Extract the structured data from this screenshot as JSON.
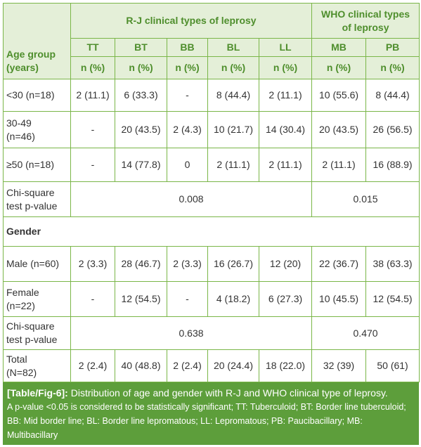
{
  "header": {
    "age_group": "Age group\n(years)",
    "rj": "R-J clinical types of leprosy",
    "who": "WHO clinical types\nof leprosy",
    "types": [
      "TT",
      "BT",
      "BB",
      "BL",
      "LL",
      "MB",
      "PB"
    ],
    "units": [
      "n (%)",
      "n (%)",
      "n (%)",
      "n (%)",
      "n (%)",
      "n (%)",
      "n (%)"
    ]
  },
  "rows": [
    {
      "label": "<30 (n=18)",
      "cells": [
        "2 (11.1)",
        "6 (33.3)",
        "-",
        "8 (44.4)",
        "2 (11.1)",
        "10 (55.6)",
        "8 (44.4)"
      ]
    },
    {
      "label": "30-49\n(n=46)",
      "cells": [
        "-",
        "20 (43.5)",
        "2 (4.3)",
        "10 (21.7)",
        "14 (30.4)",
        "20 (43.5)",
        "26 (56.5)"
      ]
    },
    {
      "label": "≥50 (n=18)",
      "cells": [
        "-",
        "14 (77.8)",
        "0",
        "2 (11.1)",
        "2 (11.1)",
        "2 (11.1)",
        "16 (88.9)"
      ]
    },
    {
      "label": "Chi-square\ntest p-value",
      "rj_p": "0.008",
      "who_p": "0.015"
    },
    {
      "section": "Gender"
    },
    {
      "label": "Male (n=60)",
      "cells": [
        "2 (3.3)",
        "28 (46.7)",
        "2 (3.3)",
        "16 (26.7)",
        "12 (20)",
        "22 (36.7)",
        "38 (63.3)"
      ]
    },
    {
      "label": "Female\n(n=22)",
      "cells": [
        "-",
        "12 (54.5)",
        "-",
        "4 (18.2)",
        "6 (27.3)",
        "10 (45.5)",
        "12 (54.5)"
      ]
    },
    {
      "label": "Chi-square\ntest p-value",
      "rj_p": "0.638",
      "who_p": "0.470"
    },
    {
      "label": "Total\n(N=82)",
      "cells": [
        "2 (2.4)",
        "40 (48.8)",
        "2 (2.4)",
        "20 (24.4)",
        "18 (22.0)",
        "32 (39)",
        "50 (61)"
      ]
    }
  ],
  "caption": {
    "label": "[Table/Fig-6]:",
    "text": "Distribution of age and gender with R-J and WHO clinical type of leprosy.",
    "note": "A p-value <0.05 is considered to be statistically significant; TT: Tuberculoid; BT: Border line tuberculoid; BB: Mid border line; BL: Border line lepromatous; LL: Lepromatous; PB: Paucibacillary; MB: Multibacillary"
  }
}
